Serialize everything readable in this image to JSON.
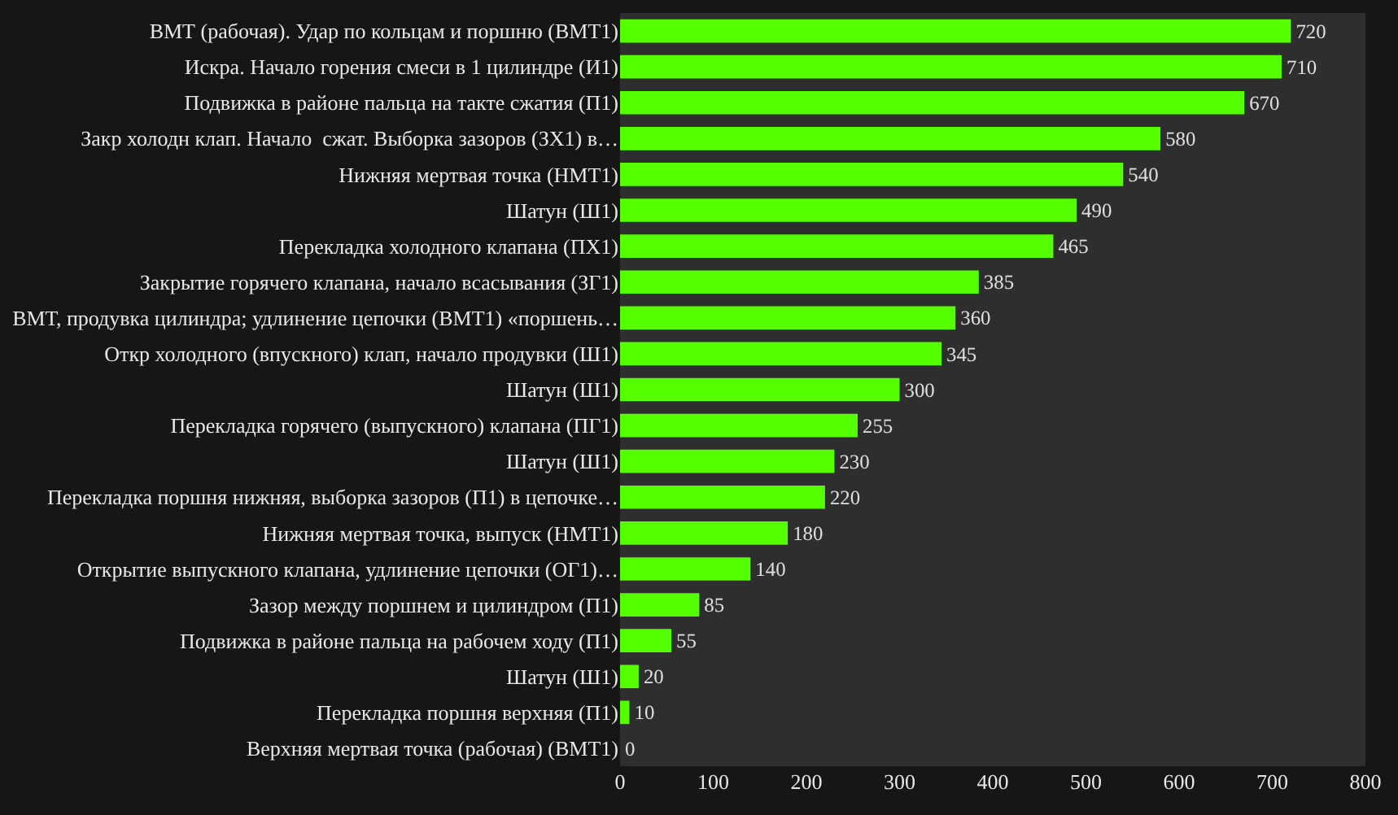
{
  "chart_data": {
    "type": "bar",
    "orientation": "horizontal",
    "categories": [
      "ВМТ (рабочая). Удар по кольцам и поршню (ВМТ1)",
      "Искра. Начало горения смеси в 1 цилиндре (И1)",
      "Подвижка в районе пальца на такте сжатия (П1)",
      "Закр холодн клап. Начало  сжат. Выборка зазоров (ЗХ1) в…",
      "Нижняя мертвая точка (НМТ1)",
      "Шатун (Ш1)",
      "Перекладка холодного клапана (ПХ1)",
      "Закрытие горячего клапана, начало всасывания (ЗГ1)",
      "ВМТ, продувка цилиндра; удлинение цепочки (ВМТ1) «поршень…",
      "Откр холодного (впускного) клап, начало продувки (Ш1)",
      "Шатун (Ш1)",
      "Перекладка горячего (выпускного) клапана (ПГ1)",
      "Шатун (Ш1)",
      "Перекладка поршня нижняя, выборка зазоров (П1) в цепочке…",
      "Нижняя мертвая точка, выпуск (НМТ1)",
      "Открытие выпускного клапана, удлинение цепочки (ОГ1)…",
      "Зазор между поршнем и цилиндром (П1)",
      "Подвижка в районе пальца на рабочем ходу (П1)",
      "Шатун (Ш1)",
      "Перекладка поршня верхняя (П1)",
      "Верхняя мертвая точка (рабочая) (ВМТ1)"
    ],
    "values": [
      720,
      710,
      670,
      580,
      540,
      490,
      465,
      385,
      360,
      345,
      300,
      255,
      230,
      220,
      180,
      140,
      85,
      55,
      20,
      10,
      0
    ],
    "color": "#55ff00",
    "xlim": [
      0,
      800
    ],
    "xticks": [
      0,
      100,
      200,
      300,
      400,
      500,
      600,
      700,
      800
    ],
    "grid": false,
    "data_labels": true
  }
}
